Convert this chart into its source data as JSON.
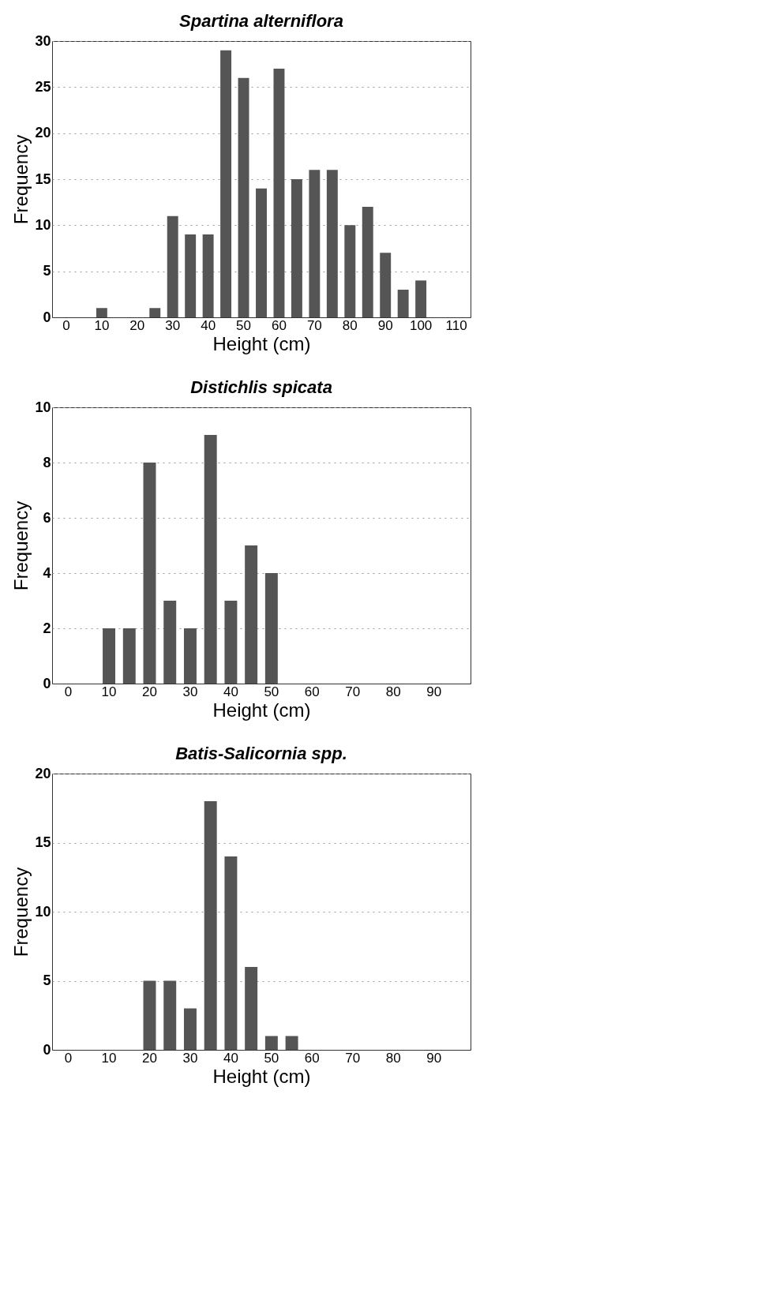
{
  "chart_data": [
    {
      "type": "bar",
      "title": "Spartina alterniflora",
      "xlabel": "Height (cm)",
      "ylabel": "Frequency",
      "categories": [
        "0",
        null,
        "10",
        null,
        "20",
        null,
        "30",
        null,
        "40",
        null,
        "50",
        null,
        "60",
        null,
        "70",
        null,
        "80",
        null,
        "90",
        null,
        "100",
        null,
        "110"
      ],
      "values": [
        0,
        0,
        1,
        0,
        0,
        1,
        11,
        9,
        9,
        29,
        26,
        14,
        27,
        15,
        16,
        16,
        10,
        12,
        7,
        3,
        4,
        0,
        0
      ],
      "color": "#555555",
      "ylim": [
        0,
        30
      ],
      "yticks": [
        0,
        5,
        10,
        15,
        20,
        25,
        30
      ],
      "grid": "y"
    },
    {
      "type": "bar",
      "title": "Distichlis spicata",
      "xlabel": "Height (cm)",
      "ylabel": "Frequency",
      "categories": [
        "0",
        null,
        "10",
        null,
        "20",
        null,
        "30",
        null,
        "40",
        null,
        "50",
        null,
        "60",
        null,
        "70",
        null,
        "80",
        null,
        "90",
        null
      ],
      "values": [
        0,
        0,
        2,
        2,
        8,
        3,
        2,
        9,
        3,
        5,
        4,
        0,
        0,
        0,
        0,
        0,
        0,
        0,
        0,
        0
      ],
      "color": "#555555",
      "ylim": [
        0,
        10
      ],
      "yticks": [
        0,
        2,
        4,
        6,
        8,
        10
      ],
      "grid": "y"
    },
    {
      "type": "bar",
      "title": "Batis-Salicornia spp.",
      "xlabel": "Height (cm)",
      "ylabel": "Frequency",
      "categories": [
        "0",
        null,
        "10",
        null,
        "20",
        null,
        "30",
        null,
        "40",
        null,
        "50",
        null,
        "60",
        null,
        "70",
        null,
        "80",
        null,
        "90",
        null
      ],
      "values": [
        0,
        0,
        0,
        0,
        5,
        5,
        3,
        18,
        14,
        6,
        1,
        1,
        0,
        0,
        0,
        0,
        0,
        0,
        0,
        0
      ],
      "color": "#555555",
      "ylim": [
        0,
        20
      ],
      "yticks": [
        0,
        5,
        10,
        15,
        20
      ],
      "grid": "y"
    }
  ]
}
